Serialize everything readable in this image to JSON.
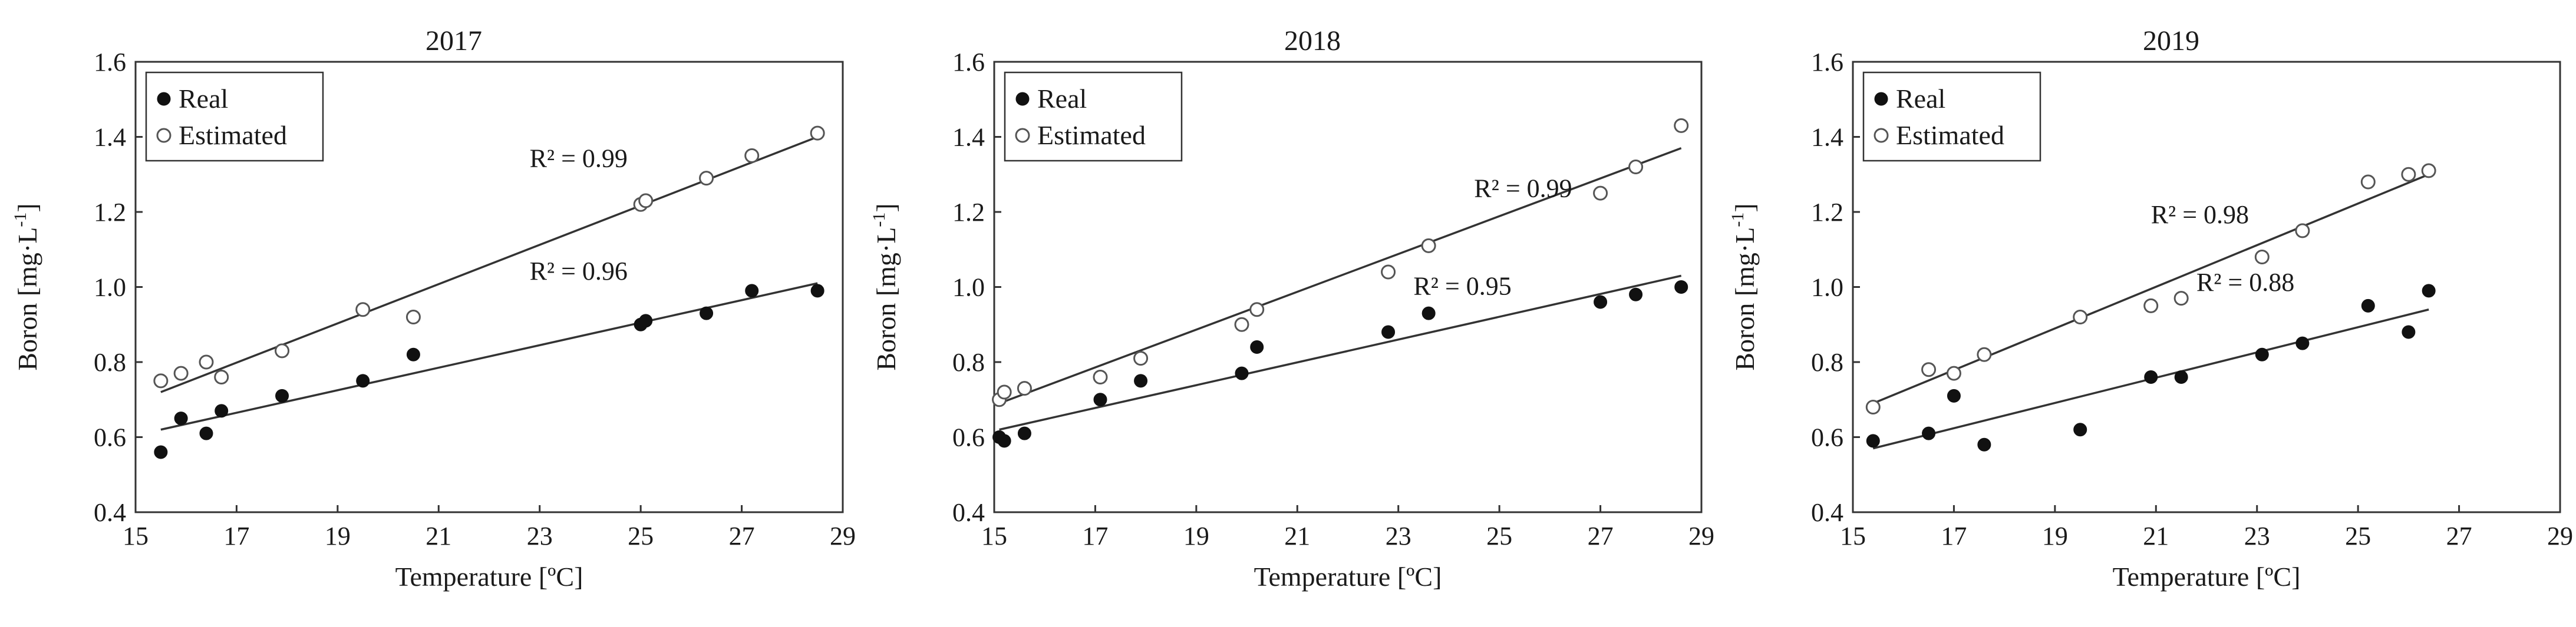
{
  "chart_data": [
    {
      "type": "scatter",
      "title": "2017",
      "xlabel": "Temperature [ºC]",
      "ylabel": "Boron [mg·L",
      "ylabel_sup": "-1",
      "ylabel_close": "]",
      "xlim": [
        15,
        29
      ],
      "ylim": [
        0.4,
        1.6
      ],
      "xticks": [
        15,
        17,
        19,
        21,
        23,
        25,
        27,
        29
      ],
      "yticks": [
        "0.4",
        "0.6",
        "0.8",
        "1.0",
        "1.2",
        "1.4",
        "1.6"
      ],
      "legend": {
        "position": "top-left",
        "entries": [
          "Real",
          "Estimated"
        ]
      },
      "series": [
        {
          "name": "Real",
          "marker": "filled",
          "x": [
            15.5,
            15.9,
            16.4,
            16.7,
            17.9,
            19.5,
            20.5,
            25.0,
            25.1,
            26.3,
            27.2,
            28.5
          ],
          "y": [
            0.56,
            0.65,
            0.61,
            0.67,
            0.71,
            0.75,
            0.82,
            0.9,
            0.91,
            0.93,
            0.99,
            0.99
          ],
          "trend": {
            "x": [
              15.5,
              28.5
            ],
            "y": [
              0.62,
              1.01
            ]
          },
          "r2_text": "R² = 0.96",
          "r2_at": [
            22.8,
            1.02
          ]
        },
        {
          "name": "Estimated",
          "marker": "open",
          "x": [
            15.5,
            15.9,
            16.4,
            16.7,
            17.9,
            19.5,
            20.5,
            25.0,
            25.1,
            26.3,
            27.2,
            28.5
          ],
          "y": [
            0.75,
            0.77,
            0.8,
            0.76,
            0.83,
            0.94,
            0.92,
            1.22,
            1.23,
            1.29,
            1.35,
            1.41
          ],
          "trend": {
            "x": [
              15.5,
              28.5
            ],
            "y": [
              0.72,
              1.4
            ]
          },
          "r2_text": "R² = 0.99",
          "r2_at": [
            22.8,
            1.32
          ]
        }
      ]
    },
    {
      "type": "scatter",
      "title": "2018",
      "xlabel": "Temperature [ºC]",
      "ylabel": "Boron [mg·L",
      "ylabel_sup": "-1",
      "ylabel_close": "]",
      "xlim": [
        15,
        29
      ],
      "ylim": [
        0.4,
        1.6
      ],
      "xticks": [
        15,
        17,
        19,
        21,
        23,
        25,
        27,
        29
      ],
      "yticks": [
        "0.4",
        "0.6",
        "0.8",
        "1.0",
        "1.2",
        "1.4",
        "1.6"
      ],
      "legend": {
        "position": "top-left",
        "entries": [
          "Real",
          "Estimated"
        ]
      },
      "series": [
        {
          "name": "Real",
          "marker": "filled",
          "x": [
            15.1,
            15.2,
            15.6,
            17.1,
            17.9,
            19.9,
            20.2,
            22.8,
            23.6,
            27.0,
            27.7,
            28.6
          ],
          "y": [
            0.6,
            0.59,
            0.61,
            0.7,
            0.75,
            0.77,
            0.84,
            0.88,
            0.93,
            0.96,
            0.98,
            1.0
          ],
          "trend": {
            "x": [
              15.1,
              28.6
            ],
            "y": [
              0.62,
              1.03
            ]
          },
          "r2_text": "R² = 0.95",
          "r2_at": [
            23.3,
            0.98
          ]
        },
        {
          "name": "Estimated",
          "marker": "open",
          "x": [
            15.1,
            15.2,
            15.6,
            17.1,
            17.9,
            19.9,
            20.2,
            22.8,
            23.6,
            27.0,
            27.7,
            28.6
          ],
          "y": [
            0.7,
            0.72,
            0.73,
            0.76,
            0.81,
            0.9,
            0.94,
            1.04,
            1.11,
            1.25,
            1.32,
            1.43
          ],
          "trend": {
            "x": [
              15.1,
              28.6
            ],
            "y": [
              0.69,
              1.37
            ]
          },
          "r2_text": "R² = 0.99",
          "r2_at": [
            24.5,
            1.24
          ]
        }
      ]
    },
    {
      "type": "scatter",
      "title": "2019",
      "xlabel": "Temperature [ºC]",
      "ylabel": "Boron [mg·L",
      "ylabel_sup": "-1",
      "ylabel_close": "]",
      "xlim": [
        15,
        29
      ],
      "ylim": [
        0.4,
        1.6
      ],
      "xticks": [
        15,
        17,
        19,
        21,
        23,
        25,
        27,
        29
      ],
      "yticks": [
        "0.4",
        "0.6",
        "0.8",
        "1.0",
        "1.2",
        "1.4",
        "1.6"
      ],
      "legend": {
        "position": "top-left",
        "entries": [
          "Real",
          "Estimated"
        ]
      },
      "series": [
        {
          "name": "Real",
          "marker": "filled",
          "x": [
            15.4,
            16.5,
            17.0,
            17.6,
            19.5,
            20.9,
            21.5,
            23.1,
            23.9,
            25.2,
            26.0,
            26.4
          ],
          "y": [
            0.59,
            0.61,
            0.71,
            0.58,
            0.62,
            0.76,
            0.76,
            0.82,
            0.85,
            0.95,
            0.88,
            0.99
          ],
          "trend": {
            "x": [
              15.4,
              26.4
            ],
            "y": [
              0.57,
              0.94
            ]
          },
          "r2_text": "R² = 0.88",
          "r2_at": [
            21.8,
            0.99
          ]
        },
        {
          "name": "Estimated",
          "marker": "open",
          "x": [
            15.4,
            16.5,
            17.0,
            17.6,
            19.5,
            20.9,
            21.5,
            23.1,
            23.9,
            25.2,
            26.0,
            26.4
          ],
          "y": [
            0.68,
            0.78,
            0.77,
            0.82,
            0.92,
            0.95,
            0.97,
            1.08,
            1.15,
            1.28,
            1.3,
            1.31
          ],
          "trend": {
            "x": [
              15.4,
              26.4
            ],
            "y": [
              0.69,
              1.3
            ]
          },
          "r2_text": "R² = 0.98",
          "r2_at": [
            20.9,
            1.17
          ]
        }
      ]
    }
  ]
}
